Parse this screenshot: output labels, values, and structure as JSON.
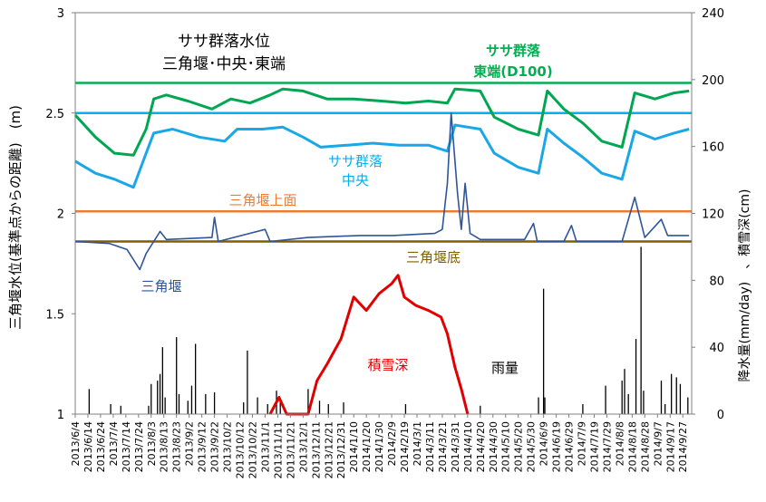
{
  "chart_data": {
    "type": "line",
    "title_lines": [
      "ササ群落水位",
      "三角堰･中央･東端"
    ],
    "ylabel_left": "三角堰水位(基準点からの距離)　(m)",
    "ylabel_right": "降水量(mm/day)　、積雪深(cm)",
    "y_left": {
      "min": 1,
      "max": 3,
      "ticks": [
        "1",
        "1.5",
        "2",
        "2.5",
        "3"
      ]
    },
    "y_right": {
      "min": 0,
      "max": 240,
      "ticks": [
        "0",
        "40",
        "80",
        "120",
        "160",
        "200",
        "240"
      ]
    },
    "x_start": "2013/6/4",
    "x_end": "2014/10/4",
    "x_ticks": [
      "2013/6/4",
      "2013/6/14",
      "2013/6/24",
      "2013/7/4",
      "2013/7/14",
      "2013/7/24",
      "2013/8/3",
      "2013/8/13",
      "2013/8/23",
      "2013/9/2",
      "2013/9/12",
      "2013/9/22",
      "2013/10/2",
      "2013/10/12",
      "2013/10/22",
      "2013/11/1",
      "2013/11/11",
      "2013/11/21",
      "2013/12/1",
      "2013/12/11",
      "2013/12/21",
      "2013/12/31",
      "2014/1/10",
      "2014/1/20",
      "2014/1/30",
      "2014/2/9",
      "2014/2/19",
      "2014/3/1",
      "2014/3/11",
      "2014/3/21",
      "2014/3/31",
      "2014/4/10",
      "2014/4/20",
      "2014/4/30",
      "2014/5/10",
      "2014/5/20",
      "2014/5/30",
      "2014/6/9",
      "2014/6/19",
      "2014/6/29",
      "2014/7/9",
      "2014/7/19",
      "2014/7/29",
      "2014/8/8",
      "2014/8/18",
      "2014/8/28",
      "2014/9/7",
      "2014/9/17",
      "2014/9/27"
    ],
    "reference_lines": [
      {
        "name": "ササ群落東端(D100)",
        "label_lines": [
          "ササ群落",
          "東端(D100)"
        ],
        "value": 2.65,
        "color": "#00b050"
      },
      {
        "name": "ササ群落中央",
        "value": 2.5,
        "color": "#00b0f0"
      },
      {
        "name": "三角堰上面",
        "label": "三角堰上面",
        "value": 2.01,
        "color": "#ed7d31"
      },
      {
        "name": "三角堰底",
        "label": "三角堰底",
        "value": 1.86,
        "color": "#7f6000"
      }
    ],
    "series": [
      {
        "name": "ササ群落東端",
        "axis": "left",
        "color": "#00a651",
        "points": [
          [
            "2013/6/4",
            2.49
          ],
          [
            "2013/6/20",
            2.38
          ],
          [
            "2013/7/5",
            2.3
          ],
          [
            "2013/7/20",
            2.29
          ],
          [
            "2013/7/30",
            2.42
          ],
          [
            "2013/8/5",
            2.57
          ],
          [
            "2013/8/15",
            2.59
          ],
          [
            "2013/9/1",
            2.56
          ],
          [
            "2013/9/20",
            2.52
          ],
          [
            "2013/10/5",
            2.57
          ],
          [
            "2013/10/20",
            2.55
          ],
          [
            "2013/11/5",
            2.59
          ],
          [
            "2013/11/15",
            2.62
          ],
          [
            "2013/12/1",
            2.61
          ],
          [
            "2013/12/20",
            2.57
          ],
          [
            "2014/1/10",
            2.57
          ],
          [
            "2014/2/1",
            2.56
          ],
          [
            "2014/2/20",
            2.55
          ],
          [
            "2014/3/10",
            2.56
          ],
          [
            "2014/3/25",
            2.55
          ],
          [
            "2014/3/31",
            2.62
          ],
          [
            "2014/4/20",
            2.61
          ],
          [
            "2014/5/1",
            2.48
          ],
          [
            "2014/5/20",
            2.42
          ],
          [
            "2014/6/5",
            2.39
          ],
          [
            "2014/6/12",
            2.61
          ],
          [
            "2014/6/25",
            2.52
          ],
          [
            "2014/7/10",
            2.45
          ],
          [
            "2014/7/25",
            2.36
          ],
          [
            "2014/8/10",
            2.33
          ],
          [
            "2014/8/20",
            2.6
          ],
          [
            "2014/9/5",
            2.57
          ],
          [
            "2014/9/20",
            2.6
          ],
          [
            "2014/10/2",
            2.61
          ]
        ]
      },
      {
        "name": "ササ群落中央",
        "axis": "left",
        "color": "#1aa7e8",
        "points": [
          [
            "2013/6/4",
            2.26
          ],
          [
            "2013/6/20",
            2.2
          ],
          [
            "2013/7/5",
            2.17
          ],
          [
            "2013/7/20",
            2.13
          ],
          [
            "2013/7/30",
            2.3
          ],
          [
            "2013/8/5",
            2.4
          ],
          [
            "2013/8/20",
            2.42
          ],
          [
            "2013/9/10",
            2.38
          ],
          [
            "2013/9/30",
            2.36
          ],
          [
            "2013/10/10",
            2.42
          ],
          [
            "2013/10/30",
            2.42
          ],
          [
            "2013/11/15",
            2.43
          ],
          [
            "2013/12/1",
            2.38
          ],
          [
            "2013/12/15",
            2.33
          ],
          [
            "2014/1/5",
            2.34
          ],
          [
            "2014/1/25",
            2.35
          ],
          [
            "2014/2/15",
            2.34
          ],
          [
            "2014/3/10",
            2.34
          ],
          [
            "2014/3/25",
            2.31
          ],
          [
            "2014/3/31",
            2.44
          ],
          [
            "2014/4/20",
            2.42
          ],
          [
            "2014/5/1",
            2.3
          ],
          [
            "2014/5/20",
            2.23
          ],
          [
            "2014/6/5",
            2.2
          ],
          [
            "2014/6/12",
            2.42
          ],
          [
            "2014/6/25",
            2.35
          ],
          [
            "2014/7/10",
            2.28
          ],
          [
            "2014/7/25",
            2.2
          ],
          [
            "2014/8/10",
            2.17
          ],
          [
            "2014/8/20",
            2.41
          ],
          [
            "2014/9/5",
            2.37
          ],
          [
            "2014/9/20",
            2.4
          ],
          [
            "2014/10/2",
            2.42
          ]
        ]
      },
      {
        "name": "三角堰",
        "axis": "left",
        "color": "#2f5597",
        "points": [
          [
            "2013/6/4",
            1.86
          ],
          [
            "2013/7/1",
            1.85
          ],
          [
            "2013/7/15",
            1.82
          ],
          [
            "2013/7/25",
            1.72
          ],
          [
            "2013/7/30",
            1.8
          ],
          [
            "2013/8/5",
            1.86
          ],
          [
            "2013/8/10",
            1.91
          ],
          [
            "2013/8/15",
            1.87
          ],
          [
            "2013/9/20",
            1.88
          ],
          [
            "2013/9/22",
            1.98
          ],
          [
            "2013/9/25",
            1.86
          ],
          [
            "2013/11/1",
            1.92
          ],
          [
            "2013/11/5",
            1.86
          ],
          [
            "2013/12/5",
            1.88
          ],
          [
            "2014/1/15",
            1.89
          ],
          [
            "2014/2/10",
            1.89
          ],
          [
            "2014/3/15",
            1.9
          ],
          [
            "2014/3/21",
            1.92
          ],
          [
            "2014/3/25",
            2.15
          ],
          [
            "2014/3/28",
            2.5
          ],
          [
            "2014/4/2",
            2.1
          ],
          [
            "2014/4/5",
            1.92
          ],
          [
            "2014/4/8",
            2.15
          ],
          [
            "2014/4/12",
            1.9
          ],
          [
            "2014/4/20",
            1.87
          ],
          [
            "2014/5/25",
            1.87
          ],
          [
            "2014/6/1",
            1.95
          ],
          [
            "2014/6/4",
            1.86
          ],
          [
            "2014/6/25",
            1.86
          ],
          [
            "2014/7/1",
            1.94
          ],
          [
            "2014/7/5",
            1.86
          ],
          [
            "2014/8/10",
            1.86
          ],
          [
            "2014/8/20",
            2.08
          ],
          [
            "2014/8/28",
            1.88
          ],
          [
            "2014/9/10",
            1.97
          ],
          [
            "2014/9/15",
            1.89
          ],
          [
            "2014/10/2",
            1.89
          ]
        ]
      },
      {
        "name": "積雪深",
        "axis": "right",
        "color": "#e00000",
        "points": [
          [
            "2013/11/5",
            0
          ],
          [
            "2013/11/12",
            10
          ],
          [
            "2013/11/18",
            0
          ],
          [
            "2013/12/5",
            0
          ],
          [
            "2013/12/12",
            20
          ],
          [
            "2013/12/20",
            30
          ],
          [
            "2013/12/31",
            45
          ],
          [
            "2014/1/10",
            70
          ],
          [
            "2014/1/20",
            62
          ],
          [
            "2014/1/30",
            72
          ],
          [
            "2014/2/9",
            78
          ],
          [
            "2014/2/14",
            83
          ],
          [
            "2014/2/19",
            70
          ],
          [
            "2014/2/28",
            65
          ],
          [
            "2014/3/10",
            62
          ],
          [
            "2014/3/20",
            58
          ],
          [
            "2014/3/25",
            48
          ],
          [
            "2014/3/31",
            28
          ],
          [
            "2014/4/5",
            15
          ],
          [
            "2014/4/10",
            0
          ]
        ]
      },
      {
        "name": "雨量",
        "axis": "right",
        "color": "#000000",
        "type": "bar",
        "points": [
          [
            "2013/6/15",
            15
          ],
          [
            "2013/7/2",
            6
          ],
          [
            "2013/7/10",
            5
          ],
          [
            "2013/8/1",
            5
          ],
          [
            "2013/8/3",
            18
          ],
          [
            "2013/8/8",
            20
          ],
          [
            "2013/8/10",
            24
          ],
          [
            "2013/8/12",
            40
          ],
          [
            "2013/8/14",
            10
          ],
          [
            "2013/8/23",
            46
          ],
          [
            "2013/8/25",
            12
          ],
          [
            "2013/9/1",
            8
          ],
          [
            "2013/9/4",
            17
          ],
          [
            "2013/9/7",
            42
          ],
          [
            "2013/9/15",
            12
          ],
          [
            "2013/9/22",
            13
          ],
          [
            "2013/10/15",
            7
          ],
          [
            "2013/10/18",
            38
          ],
          [
            "2013/10/26",
            10
          ],
          [
            "2013/11/3",
            6
          ],
          [
            "2013/11/10",
            14
          ],
          [
            "2013/11/13",
            8
          ],
          [
            "2013/12/5",
            15
          ],
          [
            "2013/12/14",
            8
          ],
          [
            "2013/12/21",
            6
          ],
          [
            "2014/1/2",
            7
          ],
          [
            "2014/2/20",
            6
          ],
          [
            "2014/4/20",
            5
          ],
          [
            "2014/6/5",
            10
          ],
          [
            "2014/6/9",
            75
          ],
          [
            "2014/6/10",
            10
          ],
          [
            "2014/7/10",
            6
          ],
          [
            "2014/7/28",
            17
          ],
          [
            "2014/8/10",
            20
          ],
          [
            "2014/8/12",
            27
          ],
          [
            "2014/8/15",
            12
          ],
          [
            "2014/8/21",
            45
          ],
          [
            "2014/8/25",
            100
          ],
          [
            "2014/8/27",
            14
          ],
          [
            "2014/9/10",
            20
          ],
          [
            "2014/9/13",
            6
          ],
          [
            "2014/9/18",
            24
          ],
          [
            "2014/9/22",
            22
          ],
          [
            "2014/9/25",
            18
          ],
          [
            "2014/10/1",
            10
          ]
        ]
      }
    ],
    "annotations": [
      {
        "text": "ササ群落",
        "color": "#00b050"
      },
      {
        "text": "中央",
        "color": "#00b0f0"
      },
      {
        "text": "三角堰上面",
        "color": "#ed7d31"
      },
      {
        "text": "三角堰底",
        "color": "#7f6000"
      },
      {
        "text": "三角堰",
        "color": "#2f5597"
      },
      {
        "text": "積雪深",
        "color": "#e00000"
      },
      {
        "text": "雨量",
        "color": "#000000"
      }
    ]
  }
}
